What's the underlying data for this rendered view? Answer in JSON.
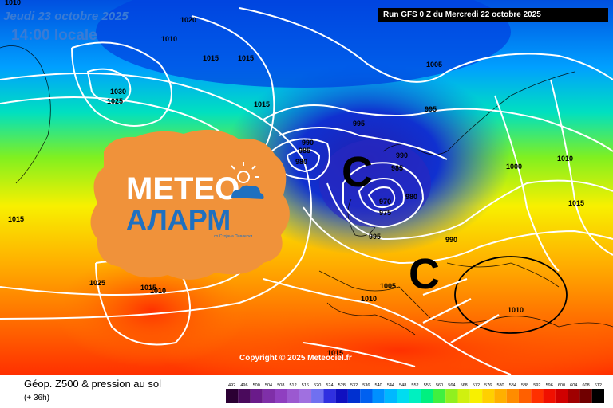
{
  "header": {
    "date": "Jeudi 23 octobre 2025",
    "time": "14:00 locale",
    "run": "Run GFS 0 Z du Mercredi 22 octobre 2025"
  },
  "logo": {
    "line1": "METEO",
    "line2": "АЛАРМ",
    "tagline": "со Стојана Павлески",
    "color": "#f0923a"
  },
  "map_labels": {
    "isobars": [
      {
        "value": "1020"
      },
      {
        "value": "1010"
      },
      {
        "value": "1010"
      },
      {
        "value": "1015"
      },
      {
        "value": "1015"
      },
      {
        "value": "1030"
      },
      {
        "value": "1025"
      },
      {
        "value": "1015"
      },
      {
        "value": "1005"
      },
      {
        "value": "995"
      },
      {
        "value": "995"
      },
      {
        "value": "990"
      },
      {
        "value": "985"
      },
      {
        "value": "980"
      },
      {
        "value": "990"
      },
      {
        "value": "985"
      },
      {
        "value": "980"
      },
      {
        "value": "970"
      },
      {
        "value": "975"
      },
      {
        "value": "995"
      },
      {
        "value": "990"
      },
      {
        "value": "1000"
      },
      {
        "value": "1010"
      },
      {
        "value": "1015"
      },
      {
        "value": "1015"
      },
      {
        "value": "1025"
      },
      {
        "value": "1015"
      },
      {
        "value": "1010"
      },
      {
        "value": "1005"
      },
      {
        "value": "1010"
      },
      {
        "value": "1010"
      },
      {
        "value": "1015"
      }
    ],
    "lows": [
      "C",
      "C"
    ]
  },
  "copyright": "Copyright © 2025 Meteociel.fr",
  "footer": {
    "title": "Géop. Z500 & pression au sol",
    "subtitle": "(+ 36h)"
  },
  "scale": {
    "ticks": [
      "492",
      "496",
      "500",
      "504",
      "508",
      "512",
      "516",
      "520",
      "524",
      "528",
      "532",
      "536",
      "540",
      "544",
      "548",
      "552",
      "556",
      "560",
      "564",
      "568",
      "572",
      "576",
      "580",
      "584",
      "588",
      "592",
      "596",
      "600",
      "604",
      "608",
      "612"
    ],
    "colors": [
      "#2b0033",
      "#4a0a5c",
      "#6a1b8a",
      "#7f2fa8",
      "#8f3fc0",
      "#9b59d0",
      "#a070e0",
      "#7070f0",
      "#3030e0",
      "#1010c0",
      "#0030d0",
      "#0060f0",
      "#0090ff",
      "#00b8ff",
      "#00dcf0",
      "#00f0c0",
      "#00f080",
      "#40f040",
      "#90f020",
      "#d0f010",
      "#f8f000",
      "#ffd000",
      "#ffb000",
      "#ff8c00",
      "#ff6000",
      "#ff3000",
      "#f01000",
      "#d00000",
      "#a00000",
      "#700000",
      "#000000"
    ]
  }
}
